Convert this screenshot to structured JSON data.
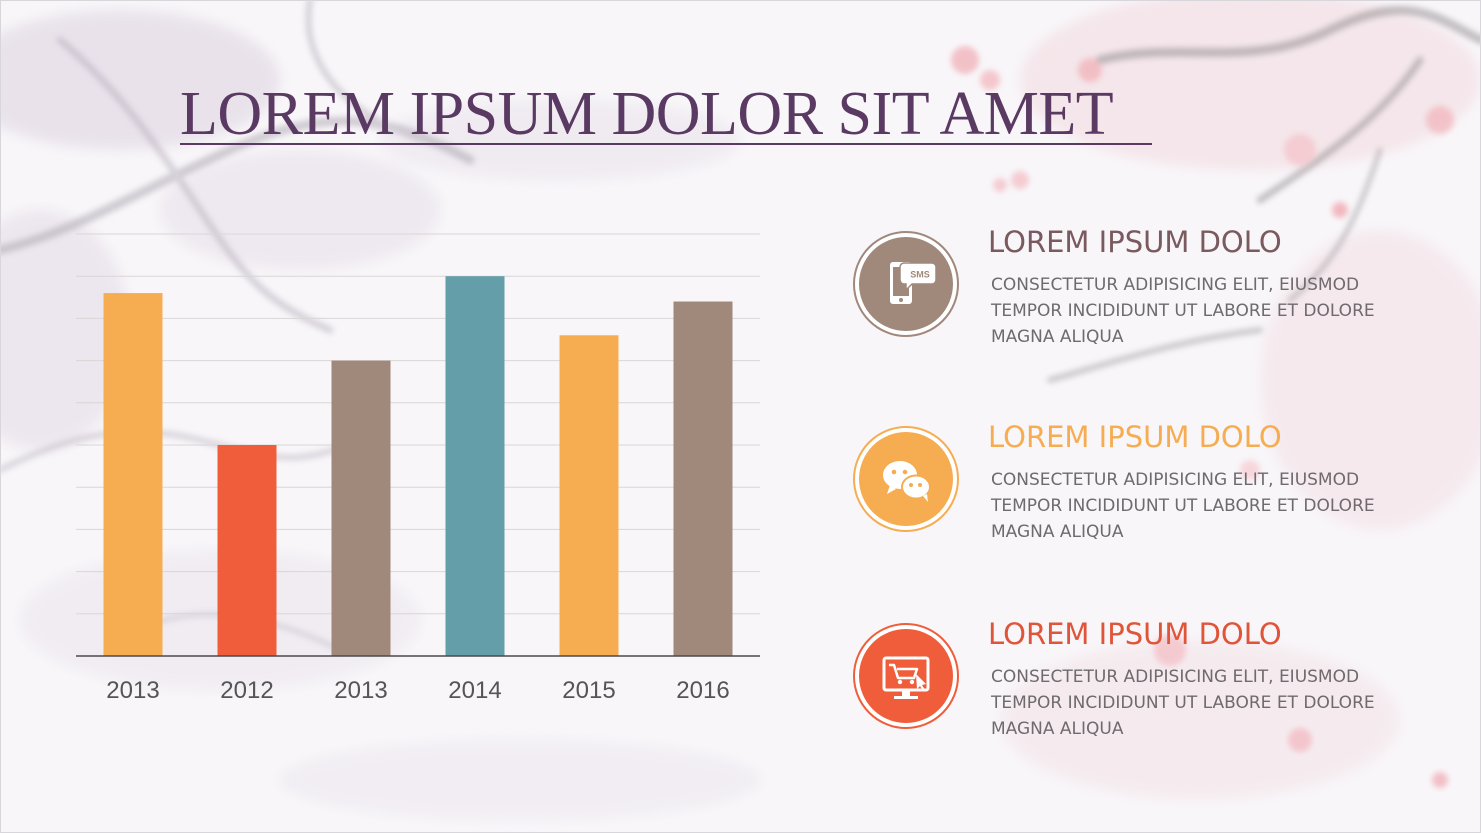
{
  "colors": {
    "title": "#5a3a63",
    "brown": "#a0887b",
    "orange": "#f6ad52",
    "red": "#f05d3b",
    "teal": "#649ea8",
    "gridline": "#d9d6d6",
    "axis": "#4a4a4a",
    "tick_label": "#555555",
    "body_text": "#6e6a6e"
  },
  "title": "LOREM IPSUM DOLOR SIT AMET",
  "chart_data": {
    "type": "bar",
    "categories": [
      "2013",
      "2012",
      "2013",
      "2014",
      "2015",
      "2016"
    ],
    "values": [
      8.6,
      5.0,
      7.0,
      9.0,
      7.6,
      8.4
    ],
    "bar_colors": [
      "#f6ad52",
      "#f05d3b",
      "#a0887b",
      "#649ea8",
      "#f6ad52",
      "#a0887b"
    ],
    "ylim": [
      0,
      10
    ],
    "gridlines": 10,
    "grid": true,
    "title": "",
    "xlabel": "",
    "ylabel": ""
  },
  "items": [
    {
      "icon": "sms-phone-icon",
      "color": "#a0887b",
      "heading_color": "#7a5a5e",
      "heading": "LOREM IPSUM DOLO",
      "body": "CONSECTETUR ADIPISICING ELIT, EIUSMOD TEMPOR INCIDIDUNT UT LABORE ET DOLORE MAGNA ALIQUA"
    },
    {
      "icon": "chat-bubbles-icon",
      "color": "#f6ad52",
      "heading_color": "#f6ad52",
      "heading": "LOREM IPSUM DOLO",
      "body": "CONSECTETUR ADIPISICING ELIT, EIUSMOD TEMPOR INCIDIDUNT UT LABORE ET DOLORE MAGNA ALIQUA"
    },
    {
      "icon": "shopping-cart-monitor-icon",
      "color": "#f05d3b",
      "heading_color": "#e0553a",
      "heading": "LOREM IPSUM DOLO",
      "body": "CONSECTETUR ADIPISICING ELIT, EIUSMOD TEMPOR INCIDIDUNT UT LABORE ET DOLORE MAGNA ALIQUA"
    }
  ],
  "sms_badge": "SMS"
}
